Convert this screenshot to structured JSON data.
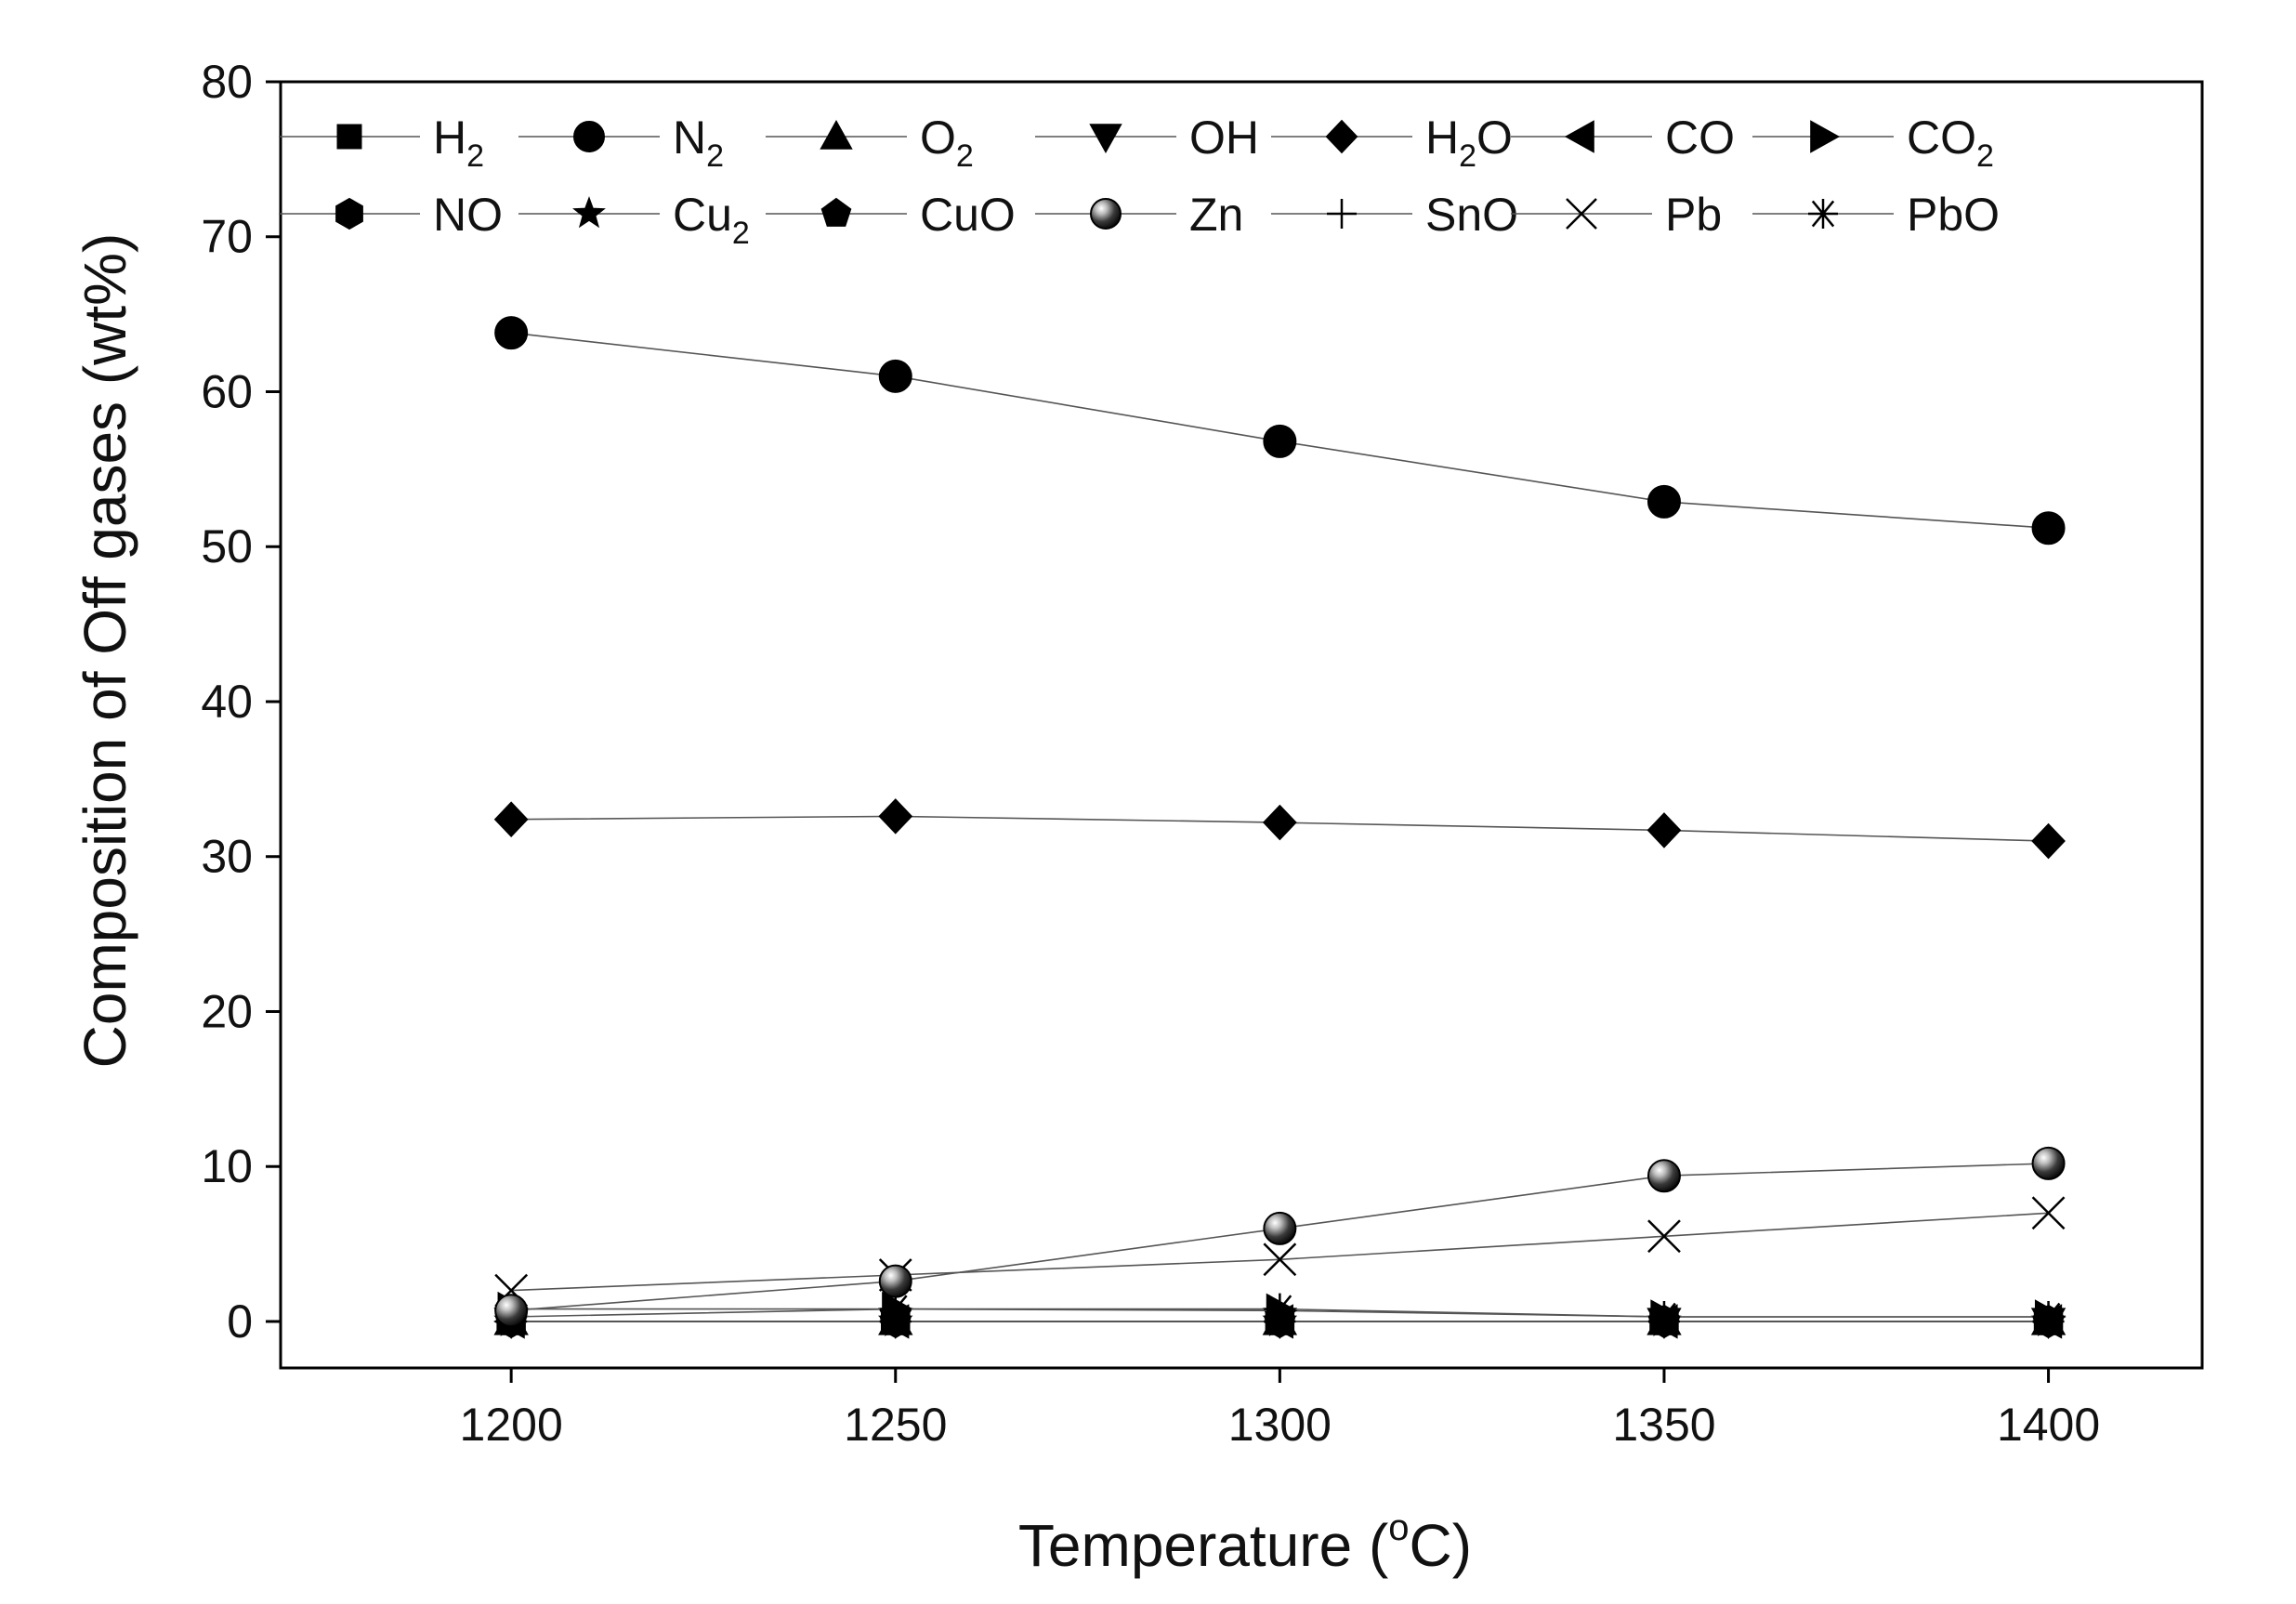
{
  "chart_data": {
    "type": "line",
    "title": "",
    "xlabel_prefix": "Temperature (",
    "xlabel_sup": "o",
    "xlabel_suffix": "C)",
    "ylabel": "Composition of Off gases (wt%)",
    "xlim": [
      1170,
      1420
    ],
    "ylim": [
      -3,
      80
    ],
    "xticks": [
      1200,
      1250,
      1300,
      1350,
      1400
    ],
    "yticks": [
      0,
      10,
      20,
      30,
      40,
      50,
      60,
      70,
      80
    ],
    "x": [
      1200,
      1250,
      1300,
      1350,
      1400
    ],
    "legend_position": "top, inside, two rows",
    "series": [
      {
        "name": "H2",
        "base": "H",
        "sub": "2",
        "marker": "square",
        "values": [
          0,
          0,
          0,
          0,
          0
        ]
      },
      {
        "name": "N2",
        "base": "N",
        "sub": "2",
        "marker": "circle",
        "values": [
          63.8,
          61.0,
          56.8,
          52.9,
          51.2
        ]
      },
      {
        "name": "O2",
        "base": "O",
        "sub": "2",
        "marker": "triangle-up",
        "values": [
          0,
          0,
          0,
          0,
          0
        ]
      },
      {
        "name": "OH",
        "base": "OH",
        "sub": "",
        "marker": "triangle-down",
        "values": [
          0,
          0,
          0,
          0,
          0
        ]
      },
      {
        "name": "H2O",
        "base": "H",
        "sub": "2",
        "tail": "O",
        "marker": "diamond",
        "values": [
          32.4,
          32.6,
          32.2,
          31.7,
          31.0
        ]
      },
      {
        "name": "CO",
        "base": "CO",
        "sub": "",
        "marker": "triangle-left",
        "values": [
          0,
          0,
          0,
          0,
          0
        ]
      },
      {
        "name": "CO2",
        "base": "CO",
        "sub": "2",
        "marker": "triangle-right",
        "values": [
          0.8,
          0.8,
          0.7,
          0.3,
          0.3
        ]
      },
      {
        "name": "NO",
        "base": "NO",
        "sub": "",
        "marker": "hexagon",
        "values": [
          0,
          0,
          0,
          0,
          0
        ]
      },
      {
        "name": "Cu2",
        "base": "Cu",
        "sub": "2",
        "marker": "star",
        "values": [
          0,
          0,
          0,
          0,
          0
        ]
      },
      {
        "name": "CuO",
        "base": "CuO",
        "sub": "",
        "marker": "pentagon",
        "values": [
          0,
          0,
          0,
          0,
          0
        ]
      },
      {
        "name": "Zn",
        "base": "Zn",
        "sub": "",
        "marker": "sphere",
        "values": [
          0.7,
          2.6,
          6.0,
          9.4,
          10.2
        ]
      },
      {
        "name": "SnO",
        "base": "SnO",
        "sub": "",
        "marker": "plus",
        "values": [
          0,
          0,
          0,
          0,
          0
        ]
      },
      {
        "name": "Pb",
        "base": "Pb",
        "sub": "",
        "marker": "x",
        "values": [
          2.0,
          3.0,
          4.0,
          5.5,
          7.0
        ]
      },
      {
        "name": "PbO",
        "base": "PbO",
        "sub": "",
        "marker": "asterisk",
        "values": [
          0.3,
          0.8,
          0.8,
          0.3,
          0.3
        ]
      }
    ]
  }
}
